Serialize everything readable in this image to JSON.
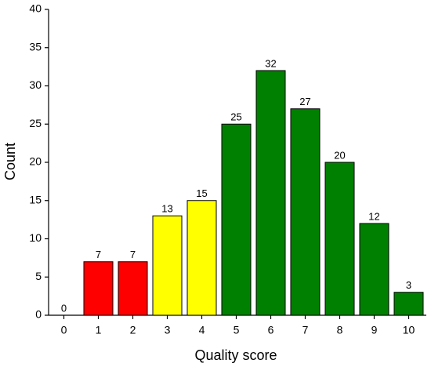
{
  "chart_data": {
    "type": "bar",
    "xlabel": "Quality score",
    "ylabel": "Count",
    "categories": [
      "0",
      "1",
      "2",
      "3",
      "4",
      "5",
      "6",
      "7",
      "8",
      "9",
      "10"
    ],
    "values": [
      0,
      7,
      7,
      13,
      15,
      25,
      32,
      27,
      20,
      12,
      3
    ],
    "colors": [
      "#ff0000",
      "#ff0000",
      "#ff0000",
      "#ffff00",
      "#ffff00",
      "#008000",
      "#008000",
      "#008000",
      "#008000",
      "#008000",
      "#008000"
    ],
    "ylim": [
      0,
      40
    ],
    "yticks": [
      0,
      5,
      10,
      15,
      20,
      25,
      30,
      35,
      40
    ],
    "grid": false
  }
}
